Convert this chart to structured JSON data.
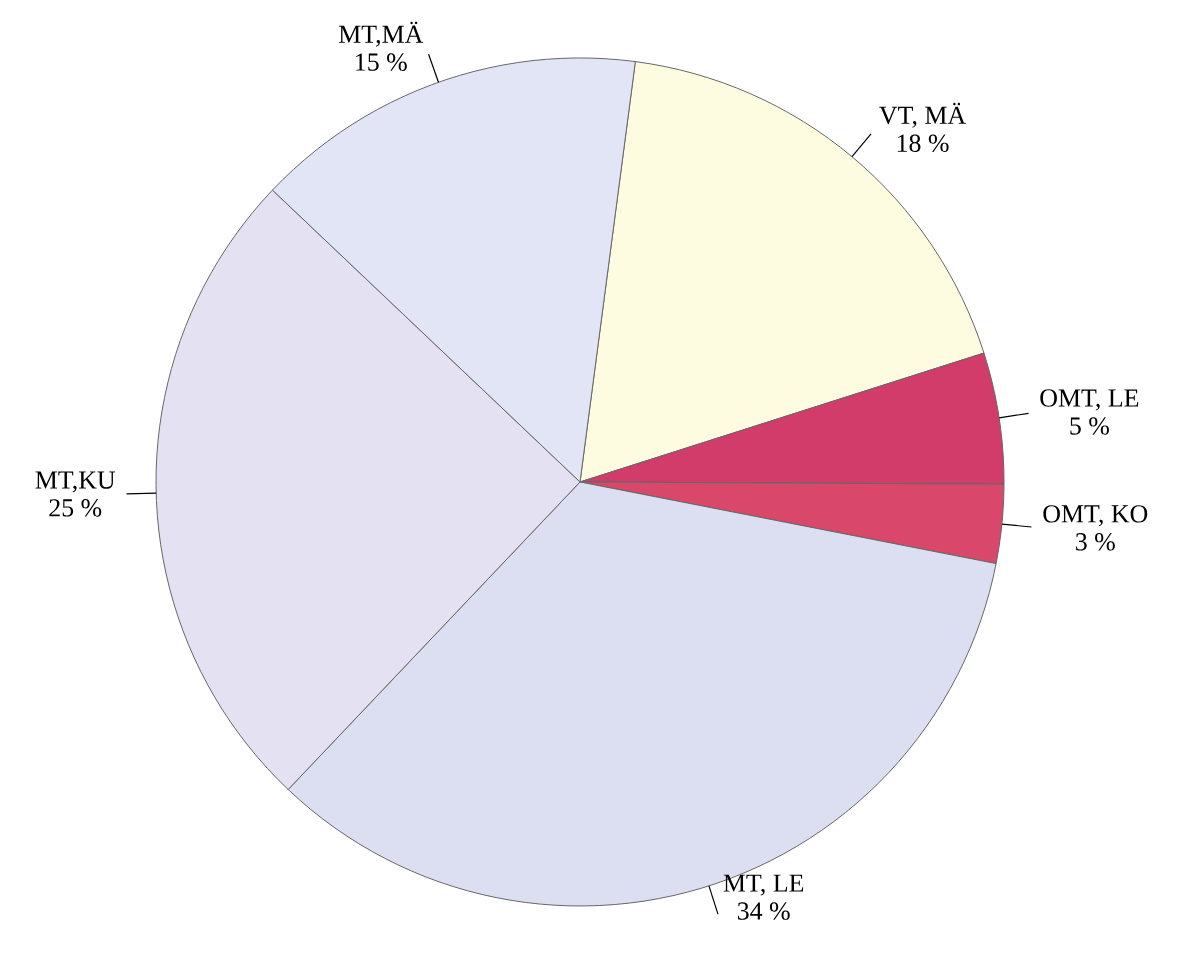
{
  "chart_data": {
    "type": "pie",
    "categories": [
      "VT, MÄ",
      "OMT, LE",
      "OMT, KO",
      "MT, LE",
      "MT,KU",
      "MT,MÄ"
    ],
    "values": [
      18,
      5,
      3,
      34,
      25,
      15
    ],
    "value_labels": [
      "18 %",
      "5 %",
      "3 %",
      "34 %",
      "25 %",
      "15 %"
    ],
    "colors": [
      "#fdfbe0",
      "#d23c6a",
      "#d9476a",
      "#dcdff2",
      "#e4e1f2",
      "#e2e5f5"
    ]
  }
}
